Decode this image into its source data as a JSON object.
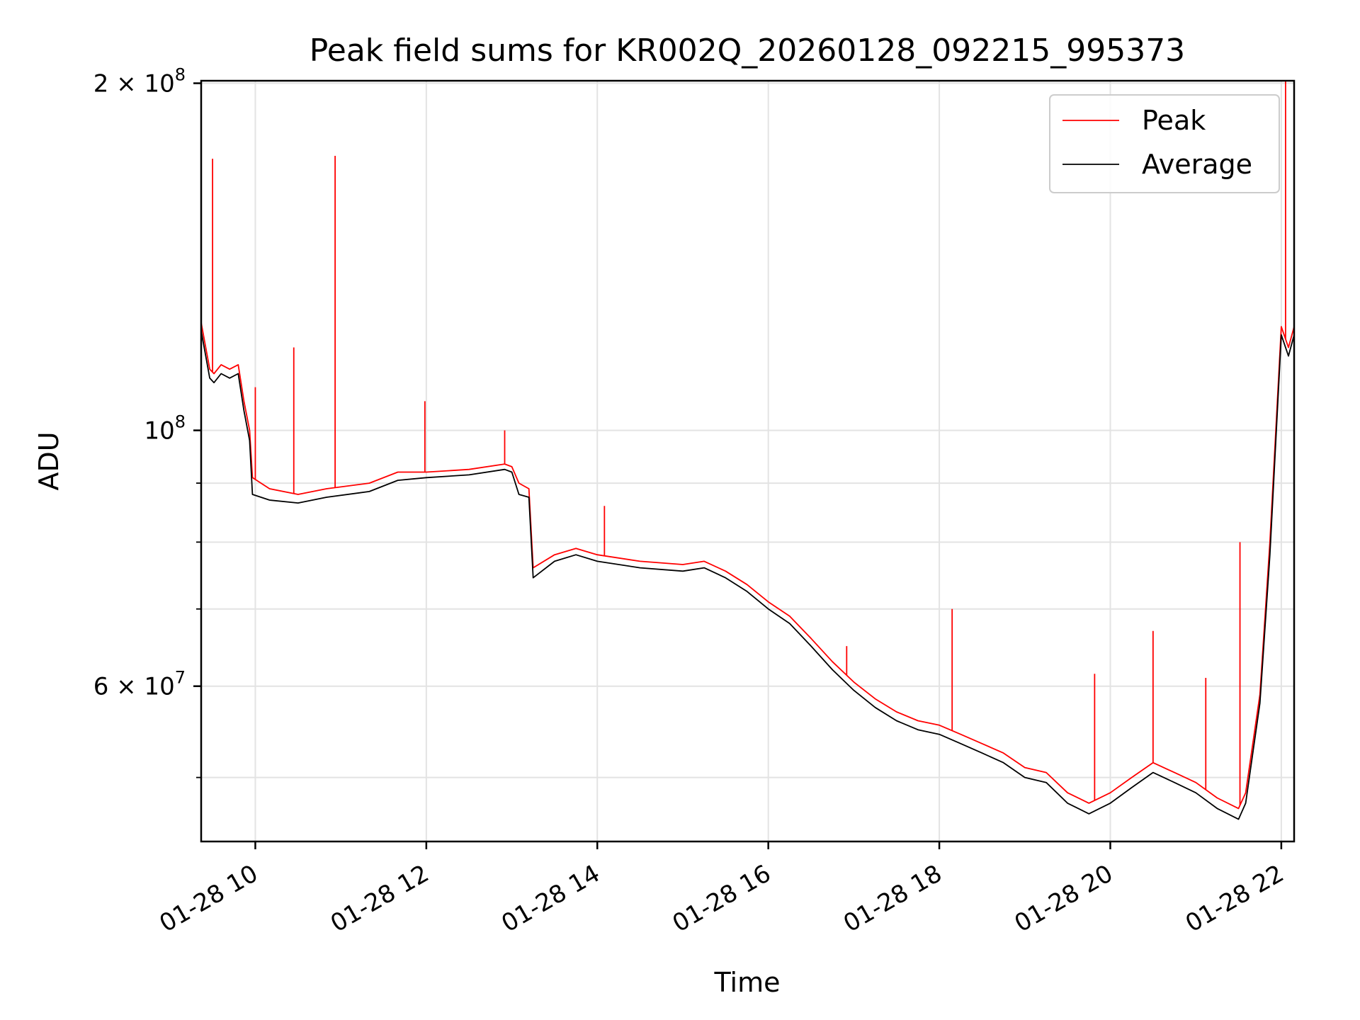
{
  "chart_data": {
    "type": "line",
    "title": "Peak field sums for KR002Q_20260128_092215_995373",
    "xlabel": "Time",
    "ylabel": "ADU",
    "y_scale": "log",
    "ylim": [
      44000000,
      201000000
    ],
    "xlim": [
      "2026-01-28 09:22",
      "2026-01-28 22:09"
    ],
    "grid": true,
    "legend_position": "top-right",
    "x_ticks": [
      {
        "value": "2026-01-28 10:00",
        "label": "01-28 10"
      },
      {
        "value": "2026-01-28 12:00",
        "label": "01-28 12"
      },
      {
        "value": "2026-01-28 14:00",
        "label": "01-28 14"
      },
      {
        "value": "2026-01-28 16:00",
        "label": "01-28 16"
      },
      {
        "value": "2026-01-28 18:00",
        "label": "01-28 18"
      },
      {
        "value": "2026-01-28 20:00",
        "label": "01-28 20"
      },
      {
        "value": "2026-01-28 22:00",
        "label": "01-28 22"
      }
    ],
    "y_ticks_major": [
      {
        "value": 60000000,
        "base": "6 × 10",
        "exp": "7"
      },
      {
        "value": 100000000,
        "base": "10",
        "exp": "8"
      },
      {
        "value": 200000000,
        "base": "2 × 10",
        "exp": "8"
      }
    ],
    "y_ticks_minor": [
      50000000,
      70000000,
      80000000,
      90000000
    ],
    "series": [
      {
        "name": "Peak",
        "color": "#ff0000",
        "x": [
          "2026-01-28 09:22",
          "2026-01-28 09:28",
          "2026-01-28 09:31",
          "2026-01-28 09:36",
          "2026-01-28 09:42",
          "2026-01-28 09:48",
          "2026-01-28 09:52",
          "2026-01-28 09:56",
          "2026-01-28 09:58",
          "2026-01-28 10:10",
          "2026-01-28 10:30",
          "2026-01-28 10:50",
          "2026-01-28 11:20",
          "2026-01-28 11:40",
          "2026-01-28 12:00",
          "2026-01-28 12:30",
          "2026-01-28 12:55",
          "2026-01-28 13:00",
          "2026-01-28 13:05",
          "2026-01-28 13:12",
          "2026-01-28 13:15",
          "2026-01-28 13:30",
          "2026-01-28 13:45",
          "2026-01-28 14:00",
          "2026-01-28 14:30",
          "2026-01-28 15:00",
          "2026-01-28 15:15",
          "2026-01-28 15:30",
          "2026-01-28 15:45",
          "2026-01-28 16:00",
          "2026-01-28 16:15",
          "2026-01-28 16:30",
          "2026-01-28 16:45",
          "2026-01-28 17:00",
          "2026-01-28 17:15",
          "2026-01-28 17:30",
          "2026-01-28 17:45",
          "2026-01-28 18:00",
          "2026-01-28 18:15",
          "2026-01-28 18:30",
          "2026-01-28 18:45",
          "2026-01-28 19:00",
          "2026-01-28 19:15",
          "2026-01-28 19:30",
          "2026-01-28 19:45",
          "2026-01-28 20:00",
          "2026-01-28 20:15",
          "2026-01-28 20:30",
          "2026-01-28 20:45",
          "2026-01-28 21:00",
          "2026-01-28 21:15",
          "2026-01-28 21:30",
          "2026-01-28 21:35",
          "2026-01-28 21:45",
          "2026-01-28 21:52",
          "2026-01-28 22:00",
          "2026-01-28 22:05",
          "2026-01-28 22:09"
        ],
        "y": [
          124000000,
          113000000,
          112000000,
          114000000,
          113000000,
          114000000,
          106000000,
          100000000,
          91000000,
          89000000,
          88000000,
          89000000,
          90000000,
          92000000,
          92000000,
          92500000,
          93500000,
          93000000,
          90000000,
          89000000,
          76000000,
          78000000,
          79000000,
          78000000,
          77000000,
          76500000,
          77000000,
          75500000,
          73500000,
          71000000,
          69000000,
          66000000,
          63000000,
          60500000,
          58500000,
          57000000,
          56000000,
          55500000,
          54500000,
          53500000,
          52500000,
          51000000,
          50500000,
          48500000,
          47500000,
          48500000,
          50000000,
          51500000,
          50500000,
          49500000,
          48000000,
          47000000,
          48500000,
          59000000,
          80000000,
          123000000,
          118000000,
          123000000
        ]
      },
      {
        "name": "Average",
        "color": "#000000",
        "x": [
          "2026-01-28 09:22",
          "2026-01-28 09:28",
          "2026-01-28 09:31",
          "2026-01-28 09:36",
          "2026-01-28 09:42",
          "2026-01-28 09:48",
          "2026-01-28 09:52",
          "2026-01-28 09:56",
          "2026-01-28 09:58",
          "2026-01-28 10:10",
          "2026-01-28 10:30",
          "2026-01-28 10:50",
          "2026-01-28 11:20",
          "2026-01-28 11:40",
          "2026-01-28 12:00",
          "2026-01-28 12:30",
          "2026-01-28 12:55",
          "2026-01-28 13:00",
          "2026-01-28 13:05",
          "2026-01-28 13:12",
          "2026-01-28 13:15",
          "2026-01-28 13:30",
          "2026-01-28 13:45",
          "2026-01-28 14:00",
          "2026-01-28 14:30",
          "2026-01-28 15:00",
          "2026-01-28 15:15",
          "2026-01-28 15:30",
          "2026-01-28 15:45",
          "2026-01-28 16:00",
          "2026-01-28 16:15",
          "2026-01-28 16:30",
          "2026-01-28 16:45",
          "2026-01-28 17:00",
          "2026-01-28 17:15",
          "2026-01-28 17:30",
          "2026-01-28 17:45",
          "2026-01-28 18:00",
          "2026-01-28 18:15",
          "2026-01-28 18:30",
          "2026-01-28 18:45",
          "2026-01-28 19:00",
          "2026-01-28 19:15",
          "2026-01-28 19:30",
          "2026-01-28 19:45",
          "2026-01-28 20:00",
          "2026-01-28 20:15",
          "2026-01-28 20:30",
          "2026-01-28 20:45",
          "2026-01-28 21:00",
          "2026-01-28 21:15",
          "2026-01-28 21:30",
          "2026-01-28 21:35",
          "2026-01-28 21:45",
          "2026-01-28 21:52",
          "2026-01-28 22:00",
          "2026-01-28 22:05",
          "2026-01-28 22:09"
        ],
        "y": [
          122000000,
          111000000,
          110000000,
          112000000,
          111000000,
          112000000,
          104000000,
          98000000,
          88000000,
          87000000,
          86500000,
          87500000,
          88500000,
          90500000,
          91000000,
          91500000,
          92500000,
          92000000,
          88000000,
          87500000,
          74500000,
          77000000,
          78000000,
          77000000,
          76000000,
          75500000,
          76000000,
          74500000,
          72500000,
          70000000,
          68000000,
          65000000,
          62000000,
          59500000,
          57500000,
          56000000,
          55000000,
          54500000,
          53500000,
          52500000,
          51500000,
          50000000,
          49500000,
          47500000,
          46500000,
          47500000,
          49000000,
          50500000,
          49500000,
          48500000,
          47000000,
          46000000,
          47500000,
          58000000,
          78000000,
          121000000,
          116000000,
          121000000
        ]
      }
    ],
    "peak_spikes": [
      {
        "x": "2026-01-28 09:30",
        "y": 172000000
      },
      {
        "x": "2026-01-28 10:27",
        "y": 118000000
      },
      {
        "x": "2026-01-28 10:56",
        "y": 173000000
      },
      {
        "x": "2026-01-28 10:00",
        "y": 109000000
      },
      {
        "x": "2026-01-28 11:59",
        "y": 106000000
      },
      {
        "x": "2026-01-28 12:55",
        "y": 100000000
      },
      {
        "x": "2026-01-28 14:05",
        "y": 86000000
      },
      {
        "x": "2026-01-28 16:55",
        "y": 65000000
      },
      {
        "x": "2026-01-28 18:09",
        "y": 70000000
      },
      {
        "x": "2026-01-28 19:49",
        "y": 61500000
      },
      {
        "x": "2026-01-28 20:30",
        "y": 67000000
      },
      {
        "x": "2026-01-28 21:07",
        "y": 61000000
      },
      {
        "x": "2026-01-28 21:31",
        "y": 80000000
      },
      {
        "x": "2026-01-28 22:03",
        "y": 201000000
      }
    ]
  }
}
